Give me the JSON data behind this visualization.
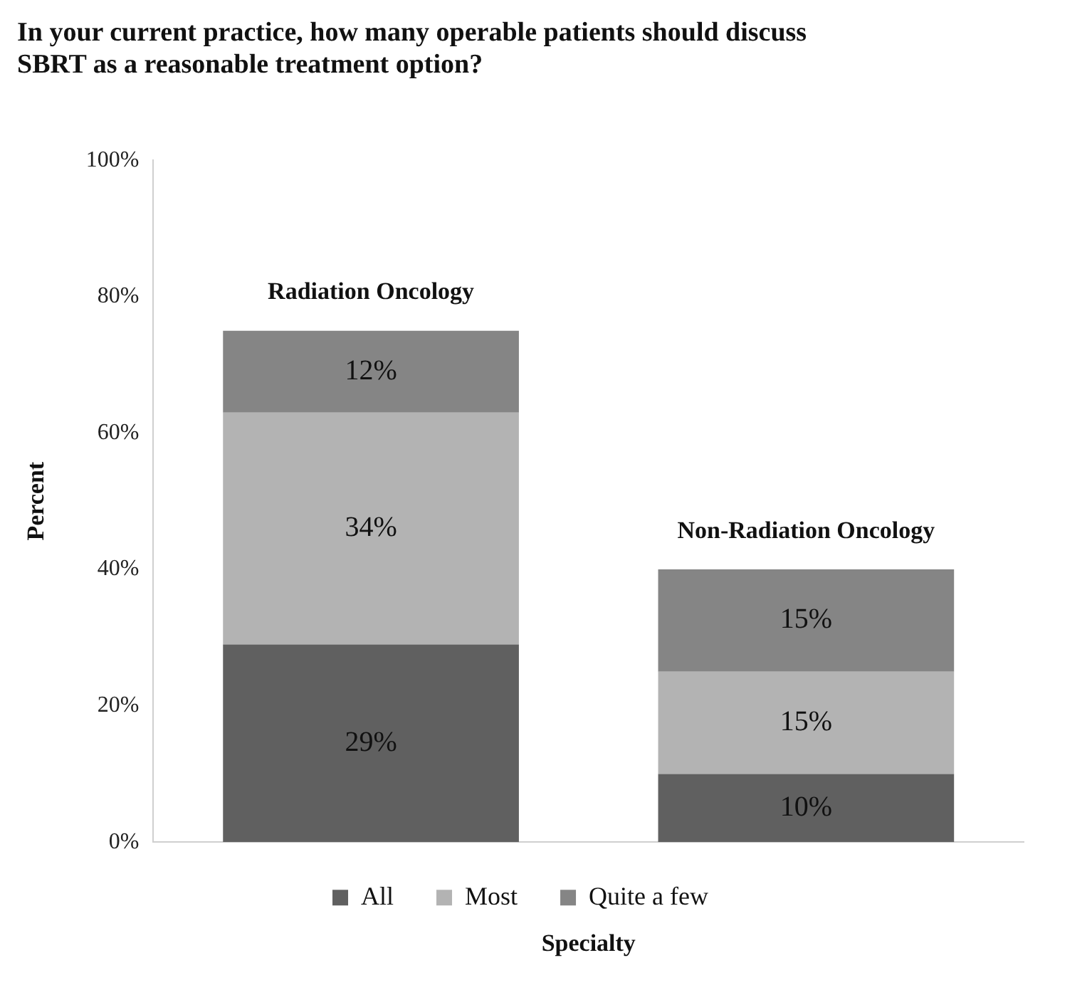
{
  "chart_data": {
    "type": "bar",
    "stacked": true,
    "title": "In your current practice, how many operable patients should discuss SBRT as a reasonable treatment option?",
    "xlabel": "Specialty",
    "ylabel": "Percent",
    "categories": [
      "Radiation Oncology",
      "Non-Radiation Oncology"
    ],
    "series": [
      {
        "name": "All",
        "color": "#606060",
        "values": [
          29,
          10
        ],
        "value_labels": [
          "29%",
          "10%"
        ]
      },
      {
        "name": "Most",
        "color": "#b3b3b3",
        "values": [
          34,
          15
        ],
        "value_labels": [
          "34%",
          "15%"
        ]
      },
      {
        "name": "Quite a few",
        "color": "#858585",
        "values": [
          12,
          15
        ],
        "value_labels": [
          "12%",
          "15%"
        ]
      }
    ],
    "ylim": [
      0,
      100
    ],
    "yticks": [
      {
        "value": 0,
        "label": "0%"
      },
      {
        "value": 20,
        "label": "20%"
      },
      {
        "value": 40,
        "label": "40%"
      },
      {
        "value": 60,
        "label": "60%"
      },
      {
        "value": 80,
        "label": "80%"
      },
      {
        "value": 100,
        "label": "100%"
      }
    ],
    "grid": false,
    "legend": "bottom"
  }
}
